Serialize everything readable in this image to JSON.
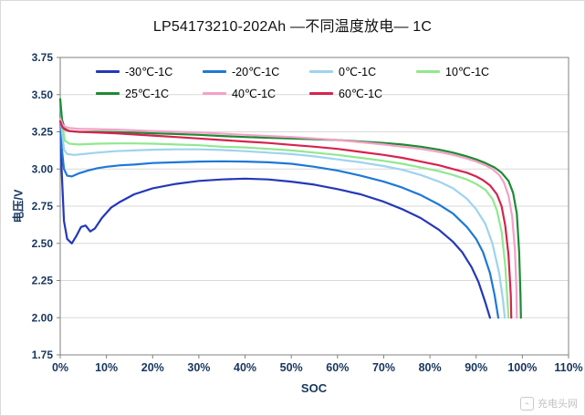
{
  "watermark": {
    "text": "充电头网",
    "icon": "charger-logo-icon"
  },
  "chart_data": {
    "type": "line",
    "title": "LP54173210-202Ah —不同温度放电— 1C",
    "xlabel": "SOC",
    "ylabel": "电压/V",
    "xlim": [
      0,
      110
    ],
    "ylim": [
      1.75,
      3.75
    ],
    "grid": "horizontal",
    "legend_position": "top-inside",
    "x_ticks": {
      "values": [
        0,
        10,
        20,
        30,
        40,
        50,
        60,
        70,
        80,
        90,
        100,
        110
      ],
      "labels": [
        "0%",
        "10%",
        "20%",
        "30%",
        "40%",
        "50%",
        "60%",
        "70%",
        "80%",
        "90%",
        "100%",
        "110%"
      ]
    },
    "y_ticks": {
      "values": [
        1.75,
        2.0,
        2.25,
        2.5,
        2.75,
        3.0,
        3.25,
        3.5,
        3.75
      ],
      "labels": [
        "1.75",
        "2.00",
        "2.25",
        "2.50",
        "2.75",
        "3.00",
        "3.25",
        "3.50",
        "3.75"
      ]
    },
    "series": [
      {
        "name": "-30℃-1C",
        "color": "#2438b8",
        "points": [
          [
            0,
            3.43
          ],
          [
            0.3,
            3.0
          ],
          [
            0.8,
            2.65
          ],
          [
            1.5,
            2.53
          ],
          [
            2.5,
            2.5
          ],
          [
            3.5,
            2.55
          ],
          [
            4.5,
            2.61
          ],
          [
            5.5,
            2.62
          ],
          [
            6.5,
            2.58
          ],
          [
            7.5,
            2.6
          ],
          [
            9,
            2.67
          ],
          [
            11,
            2.74
          ],
          [
            13,
            2.78
          ],
          [
            16,
            2.83
          ],
          [
            20,
            2.87
          ],
          [
            25,
            2.9
          ],
          [
            30,
            2.92
          ],
          [
            35,
            2.93
          ],
          [
            40,
            2.935
          ],
          [
            45,
            2.93
          ],
          [
            50,
            2.915
          ],
          [
            55,
            2.895
          ],
          [
            60,
            2.865
          ],
          [
            65,
            2.83
          ],
          [
            70,
            2.78
          ],
          [
            74,
            2.73
          ],
          [
            78,
            2.67
          ],
          [
            82,
            2.59
          ],
          [
            85,
            2.51
          ],
          [
            87,
            2.44
          ],
          [
            89,
            2.34
          ],
          [
            90.5,
            2.24
          ],
          [
            92,
            2.1
          ],
          [
            93,
            2.0
          ]
        ]
      },
      {
        "name": "-20℃-1C",
        "color": "#1e78d7",
        "points": [
          [
            0,
            3.44
          ],
          [
            0.3,
            3.15
          ],
          [
            0.8,
            3.0
          ],
          [
            1.5,
            2.955
          ],
          [
            2.5,
            2.95
          ],
          [
            4,
            2.97
          ],
          [
            6,
            2.99
          ],
          [
            8,
            3.005
          ],
          [
            10,
            3.015
          ],
          [
            13,
            3.025
          ],
          [
            16,
            3.03
          ],
          [
            20,
            3.04
          ],
          [
            25,
            3.045
          ],
          [
            30,
            3.05
          ],
          [
            35,
            3.052
          ],
          [
            40,
            3.05
          ],
          [
            45,
            3.045
          ],
          [
            50,
            3.035
          ],
          [
            55,
            3.015
          ],
          [
            60,
            2.99
          ],
          [
            65,
            2.955
          ],
          [
            70,
            2.915
          ],
          [
            74,
            2.875
          ],
          [
            78,
            2.825
          ],
          [
            82,
            2.76
          ],
          [
            85,
            2.7
          ],
          [
            88,
            2.61
          ],
          [
            90,
            2.53
          ],
          [
            91.5,
            2.44
          ],
          [
            93,
            2.3
          ],
          [
            94,
            2.15
          ],
          [
            94.8,
            2.0
          ]
        ]
      },
      {
        "name": "0℃-1C",
        "color": "#9ed3ee",
        "points": [
          [
            0,
            3.45
          ],
          [
            0.3,
            3.28
          ],
          [
            0.8,
            3.13
          ],
          [
            1.5,
            3.1
          ],
          [
            3,
            3.095
          ],
          [
            5,
            3.1
          ],
          [
            8,
            3.11
          ],
          [
            12,
            3.12
          ],
          [
            16,
            3.125
          ],
          [
            20,
            3.13
          ],
          [
            25,
            3.132
          ],
          [
            30,
            3.132
          ],
          [
            35,
            3.128
          ],
          [
            40,
            3.12
          ],
          [
            45,
            3.11
          ],
          [
            50,
            3.1
          ],
          [
            55,
            3.085
          ],
          [
            60,
            3.065
          ],
          [
            65,
            3.045
          ],
          [
            70,
            3.02
          ],
          [
            74,
            2.995
          ],
          [
            78,
            2.96
          ],
          [
            82,
            2.915
          ],
          [
            85,
            2.87
          ],
          [
            88,
            2.8
          ],
          [
            90,
            2.73
          ],
          [
            92,
            2.63
          ],
          [
            93.5,
            2.5
          ],
          [
            95,
            2.3
          ],
          [
            95.8,
            2.12
          ],
          [
            96.2,
            2.0
          ]
        ]
      },
      {
        "name": "10℃-1C",
        "color": "#90e890",
        "points": [
          [
            0,
            3.46
          ],
          [
            0.4,
            3.3
          ],
          [
            1,
            3.19
          ],
          [
            2,
            3.17
          ],
          [
            4,
            3.165
          ],
          [
            8,
            3.17
          ],
          [
            12,
            3.172
          ],
          [
            16,
            3.172
          ],
          [
            20,
            3.17
          ],
          [
            25,
            3.165
          ],
          [
            30,
            3.16
          ],
          [
            35,
            3.15
          ],
          [
            40,
            3.145
          ],
          [
            45,
            3.135
          ],
          [
            50,
            3.125
          ],
          [
            55,
            3.11
          ],
          [
            60,
            3.095
          ],
          [
            65,
            3.075
          ],
          [
            70,
            3.055
          ],
          [
            74,
            3.035
          ],
          [
            78,
            3.01
          ],
          [
            82,
            2.985
          ],
          [
            85,
            2.96
          ],
          [
            88,
            2.93
          ],
          [
            90,
            2.9
          ],
          [
            92,
            2.86
          ],
          [
            93.5,
            2.8
          ],
          [
            94.5,
            2.72
          ],
          [
            95.5,
            2.58
          ],
          [
            96.3,
            2.35
          ],
          [
            96.8,
            2.1
          ],
          [
            97,
            2.0
          ]
        ]
      },
      {
        "name": "25℃-1C",
        "color": "#1e8a34",
        "points": [
          [
            0,
            3.47
          ],
          [
            0.4,
            3.33
          ],
          [
            1,
            3.27
          ],
          [
            2,
            3.255
          ],
          [
            4,
            3.25
          ],
          [
            8,
            3.25
          ],
          [
            12,
            3.248
          ],
          [
            16,
            3.245
          ],
          [
            20,
            3.24
          ],
          [
            25,
            3.235
          ],
          [
            30,
            3.23
          ],
          [
            35,
            3.222
          ],
          [
            40,
            3.215
          ],
          [
            45,
            3.21
          ],
          [
            50,
            3.205
          ],
          [
            55,
            3.2
          ],
          [
            60,
            3.195
          ],
          [
            65,
            3.185
          ],
          [
            70,
            3.175
          ],
          [
            74,
            3.165
          ],
          [
            78,
            3.15
          ],
          [
            82,
            3.13
          ],
          [
            85,
            3.11
          ],
          [
            88,
            3.085
          ],
          [
            90,
            3.065
          ],
          [
            92,
            3.04
          ],
          [
            94,
            3.01
          ],
          [
            95.5,
            2.975
          ],
          [
            97,
            2.92
          ],
          [
            98,
            2.84
          ],
          [
            98.8,
            2.7
          ],
          [
            99.3,
            2.45
          ],
          [
            99.6,
            2.15
          ],
          [
            99.7,
            2.0
          ]
        ]
      },
      {
        "name": "40℃-1C",
        "color": "#f5a0c6",
        "points": [
          [
            0,
            3.34
          ],
          [
            0.5,
            3.3
          ],
          [
            1,
            3.285
          ],
          [
            2,
            3.275
          ],
          [
            4,
            3.27
          ],
          [
            8,
            3.268
          ],
          [
            12,
            3.265
          ],
          [
            16,
            3.26
          ],
          [
            20,
            3.255
          ],
          [
            25,
            3.25
          ],
          [
            30,
            3.245
          ],
          [
            35,
            3.238
          ],
          [
            40,
            3.23
          ],
          [
            45,
            3.222
          ],
          [
            50,
            3.215
          ],
          [
            55,
            3.205
          ],
          [
            60,
            3.195
          ],
          [
            65,
            3.18
          ],
          [
            70,
            3.165
          ],
          [
            74,
            3.15
          ],
          [
            78,
            3.135
          ],
          [
            82,
            3.115
          ],
          [
            85,
            3.095
          ],
          [
            88,
            3.07
          ],
          [
            90,
            3.05
          ],
          [
            92,
            3.025
          ],
          [
            93.5,
            3.0
          ],
          [
            95,
            2.96
          ],
          [
            96,
            2.91
          ],
          [
            97,
            2.82
          ],
          [
            97.8,
            2.68
          ],
          [
            98.4,
            2.45
          ],
          [
            98.7,
            2.2
          ],
          [
            98.8,
            2.0
          ]
        ]
      },
      {
        "name": "60℃-1C",
        "color": "#d6234f",
        "points": [
          [
            0,
            3.32
          ],
          [
            0.5,
            3.28
          ],
          [
            1,
            3.265
          ],
          [
            2,
            3.255
          ],
          [
            4,
            3.25
          ],
          [
            8,
            3.245
          ],
          [
            12,
            3.24
          ],
          [
            16,
            3.232
          ],
          [
            20,
            3.225
          ],
          [
            25,
            3.215
          ],
          [
            30,
            3.205
          ],
          [
            35,
            3.195
          ],
          [
            40,
            3.185
          ],
          [
            45,
            3.175
          ],
          [
            50,
            3.162
          ],
          [
            55,
            3.15
          ],
          [
            60,
            3.135
          ],
          [
            65,
            3.115
          ],
          [
            70,
            3.095
          ],
          [
            74,
            3.075
          ],
          [
            78,
            3.05
          ],
          [
            82,
            3.025
          ],
          [
            85,
            3.0
          ],
          [
            88,
            2.975
          ],
          [
            90,
            2.95
          ],
          [
            91.5,
            2.925
          ],
          [
            93,
            2.89
          ],
          [
            94.5,
            2.83
          ],
          [
            95.5,
            2.75
          ],
          [
            96.3,
            2.62
          ],
          [
            97,
            2.42
          ],
          [
            97.5,
            2.15
          ],
          [
            97.6,
            2.0
          ]
        ]
      }
    ]
  }
}
